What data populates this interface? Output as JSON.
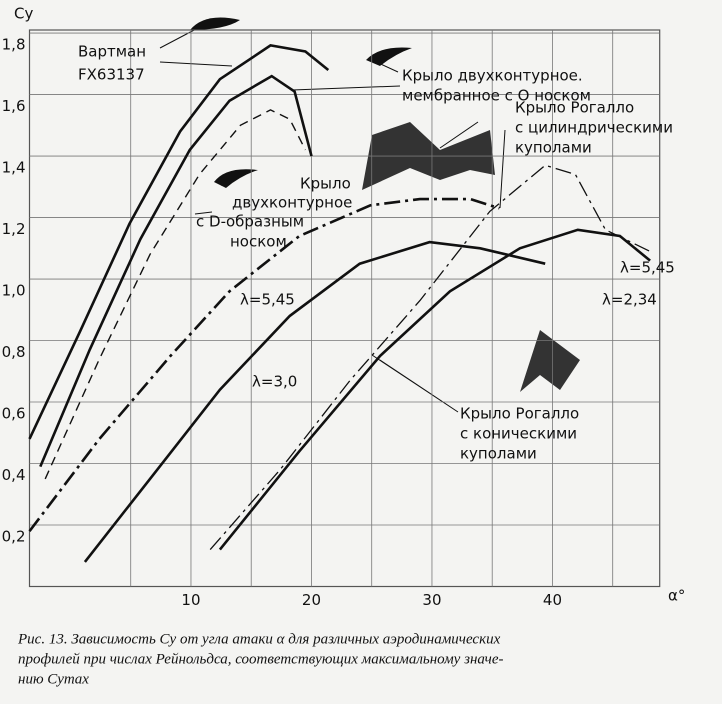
{
  "chart_data": {
    "type": "line",
    "y_label": "Cy",
    "x_label": "α°",
    "xlim": [
      -3.4,
      48.9
    ],
    "ylim": [
      0,
      1.81
    ],
    "xticks": [
      10,
      20,
      30,
      40
    ],
    "xminor": [
      5,
      15,
      25,
      35,
      45
    ],
    "yticks": [
      {
        "value": 0.2,
        "label": "0,2"
      },
      {
        "value": 0.4,
        "label": "0,4"
      },
      {
        "value": 0.6,
        "label": "0,6"
      },
      {
        "value": 0.8,
        "label": "0,8"
      },
      {
        "value": 1.0,
        "label": "1,0"
      },
      {
        "value": 1.2,
        "label": "1,2"
      },
      {
        "value": 1.4,
        "label": "1,4"
      },
      {
        "value": 1.6,
        "label": "1,6"
      },
      {
        "value": 1.8,
        "label": "1,8"
      }
    ],
    "grid": true,
    "series": [
      {
        "color": "#111",
        "style": "solid",
        "width": 2.6,
        "x": [
          -3.4,
          0.8,
          4.9,
          9.1,
          12.4,
          16.6,
          19.5,
          21.4
        ],
        "values": [
          0.48,
          0.83,
          1.18,
          1.48,
          1.65,
          1.76,
          1.74,
          1.68
        ]
      },
      {
        "color": "#111",
        "style": "solid",
        "width": 2.6,
        "x": [
          -2.5,
          1.6,
          5.8,
          9.9,
          13.2,
          16.7,
          18.6,
          20.0
        ],
        "values": [
          0.39,
          0.77,
          1.13,
          1.42,
          1.58,
          1.66,
          1.61,
          1.4
        ]
      },
      {
        "color": "#111",
        "style": "dashed",
        "width": 1.4,
        "x": [
          -2.1,
          2.4,
          6.6,
          10.7,
          14.1,
          16.6,
          18.2,
          19.5
        ],
        "values": [
          0.35,
          0.74,
          1.08,
          1.34,
          1.5,
          1.55,
          1.52,
          1.42
        ]
      },
      {
        "color": "#111",
        "style": "dashdot",
        "width": 2.6,
        "x": [
          -3.4,
          2.4,
          8.3,
          13.2,
          19.0,
          24.9,
          29.0,
          33.2,
          35.6
        ],
        "values": [
          0.18,
          0.48,
          0.75,
          0.96,
          1.14,
          1.24,
          1.26,
          1.26,
          1.23
        ]
      },
      {
        "color": "#111",
        "style": "solid",
        "width": 2.6,
        "x": [
          1.2,
          6.6,
          12.4,
          18.2,
          24.0,
          29.8,
          34.0,
          39.4
        ],
        "values": [
          0.08,
          0.35,
          0.64,
          0.88,
          1.05,
          1.12,
          1.1,
          1.05
        ]
      },
      {
        "color": "#111",
        "style": "dashdot",
        "width": 1.3,
        "x": [
          11.6,
          17.4,
          23.2,
          29.0,
          34.8,
          39.4,
          41.9,
          44.4,
          48.1
        ],
        "values": [
          0.12,
          0.38,
          0.67,
          0.93,
          1.22,
          1.37,
          1.34,
          1.16,
          1.09
        ]
      },
      {
        "color": "#111",
        "style": "solid",
        "width": 2.6,
        "x": [
          12.4,
          19.0,
          25.7,
          31.5,
          37.3,
          42.1,
          45.6,
          48.1
        ],
        "values": [
          0.12,
          0.44,
          0.75,
          0.96,
          1.1,
          1.16,
          1.14,
          1.06
        ]
      }
    ],
    "annotations": [
      "Вартман",
      "FX63137",
      "Крыло двухконтурное.",
      "мембранное с О носком",
      "Крыло Рогалло",
      "с цилиндрическими",
      "куполами",
      "Крыло",
      "двухконтурное",
      "с D-образным",
      "носком",
      "λ=5,45",
      "λ=3,0",
      "λ=5,45",
      "λ=2,34",
      "Крыло Рогалло",
      "с коническими",
      "куполами"
    ],
    "caption": [
      "Рис. 13. Зависимость Cy от угла атаки α для различных аэродинамических",
      "профилей при числах Рейнольдса, соответствующих максимальному значе-",
      "нию Cymax"
    ]
  }
}
